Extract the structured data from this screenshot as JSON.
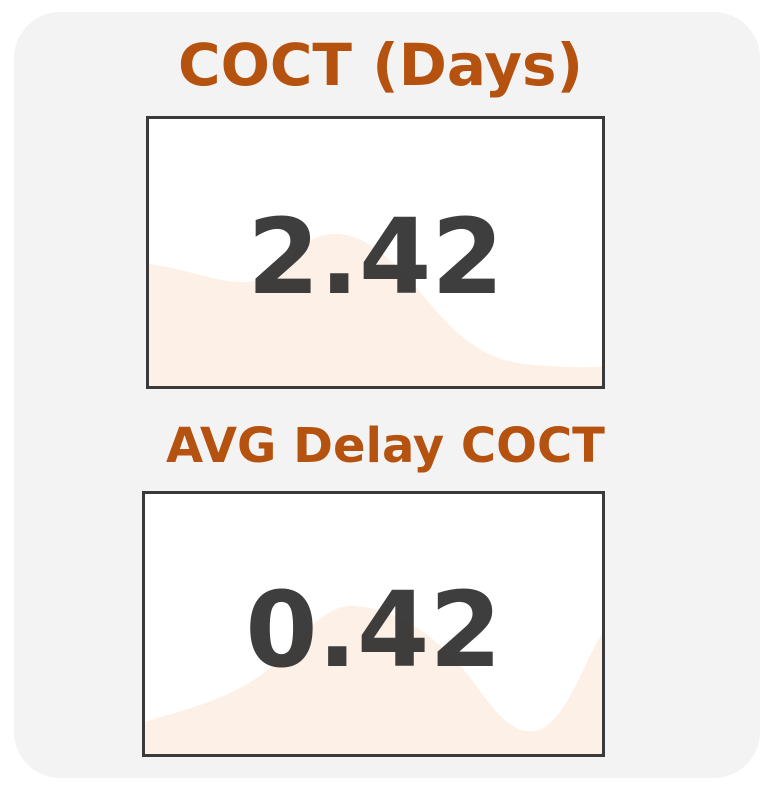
{
  "kpi_cards": [
    {
      "title": "COCT (Days)",
      "value": "2.42",
      "sparkline_fill": "#fdf0e6"
    },
    {
      "title": "AVG Delay COCT",
      "value": "0.42",
      "sparkline_fill": "#fdf0e6"
    }
  ],
  "colors": {
    "title": "#b5520f",
    "value": "#2e2e2e",
    "panel_background": "#f3f3f3",
    "card_border": "#3a3a3a"
  }
}
